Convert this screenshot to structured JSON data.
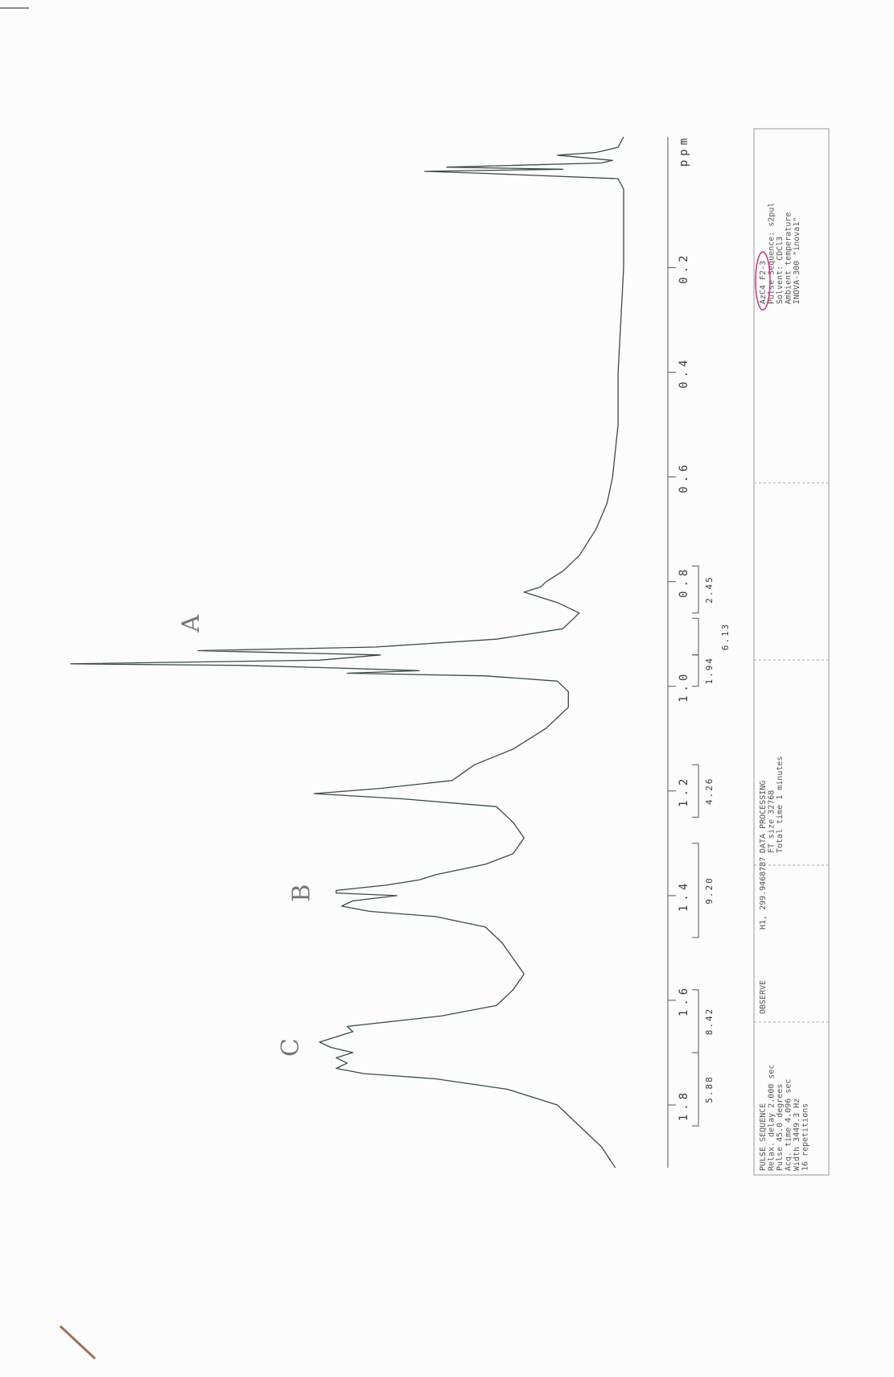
{
  "chart_data": {
    "type": "line",
    "xlabel": "ppm",
    "xlim": [
      1.92,
      -0.05
    ],
    "xticks": [
      1.8,
      1.6,
      1.4,
      1.2,
      {
        "value": 1,
        "label": "1.0"
      },
      0.8,
      0.6,
      0.4,
      0.2
    ],
    "ylim": [
      0,
      100
    ],
    "color": "#3d4a42",
    "x": [
      1.92,
      1.88,
      1.84,
      1.8,
      1.77,
      1.75,
      1.74,
      1.73,
      1.72,
      1.71,
      1.7,
      1.69,
      1.68,
      1.67,
      1.66,
      1.65,
      1.63,
      1.61,
      1.58,
      1.55,
      1.52,
      1.49,
      1.46,
      1.44,
      1.43,
      1.42,
      1.41,
      1.4,
      1.395,
      1.39,
      1.38,
      1.37,
      1.36,
      1.34,
      1.32,
      1.29,
      1.26,
      1.23,
      1.215,
      1.205,
      1.195,
      1.18,
      1.15,
      1.12,
      1.08,
      1.04,
      1.01,
      0.99,
      0.98,
      0.975,
      0.97,
      0.965,
      0.96,
      0.957,
      0.95,
      0.94,
      0.932,
      0.925,
      0.91,
      0.89,
      0.86,
      0.84,
      0.82,
      0.81,
      0.8,
      0.78,
      0.75,
      0.7,
      0.65,
      0.6,
      0.5,
      0.4,
      0.3,
      0.2,
      0.1,
      0.05,
      0.03,
      0.02,
      0.016,
      0.012,
      0.008,
      0.0,
      -0.005,
      -0.015,
      -0.02,
      -0.03,
      -0.05
    ],
    "values": [
      1.5,
      4,
      8,
      12,
      21,
      34,
      47,
      52,
      50,
      52,
      49,
      53,
      55,
      52,
      49,
      50,
      33,
      23,
      20,
      18,
      20,
      22,
      25,
      34,
      46,
      51,
      49,
      41,
      52,
      52,
      43,
      37,
      34,
      25,
      20,
      18,
      20,
      23,
      40,
      56,
      44,
      31,
      27,
      20,
      14,
      10,
      10,
      12,
      25,
      50,
      37,
      52,
      69,
      100,
      55,
      44,
      77,
      45,
      23,
      11,
      8,
      12,
      18,
      15,
      14,
      11,
      8,
      5,
      3,
      2,
      1,
      1,
      0.5,
      0,
      0,
      0,
      1,
      25,
      36,
      11,
      32,
      4,
      2,
      12,
      5,
      1,
      0
    ],
    "integrals": [
      {
        "value": 5.88,
        "from": 1.84,
        "to": 1.7
      },
      {
        "value": 8.42,
        "from": 1.7,
        "to": 1.58
      },
      {
        "value": 9.2,
        "label": "9.20",
        "from": 1.48,
        "to": 1.3
      },
      {
        "value": 4.26,
        "from": 1.25,
        "to": 1.15
      },
      {
        "value": 1.94,
        "from": 1.0,
        "to": 0.94
      },
      {
        "value": 6.13,
        "from": 0.94,
        "to": 0.87
      },
      {
        "value": 2.45,
        "from": 0.86,
        "to": 0.77
      }
    ],
    "annotations": [
      {
        "text": "A",
        "x": 0.88,
        "y": 78
      },
      {
        "text": "B",
        "x": 1.395,
        "y": 58
      },
      {
        "text": "C",
        "x": 1.69,
        "y": 60
      }
    ],
    "parameter_blocks": [
      {
        "lines": [
          "PULSE SEQUENCE",
          "Relax. delay 2.000 sec",
          "Pulse 45.0 degrees",
          "Acq. time 4.096 sec",
          "Width 3449.3 Hz",
          "16 repetitions"
        ]
      },
      {
        "lines": [
          "OBSERVE"
        ]
      },
      {
        "lines": [
          "H1, 299.9468787"
        ]
      },
      {
        "lines": [
          "DATA PROCESSING",
          "FT size 32768",
          "Total time 1 minutes"
        ]
      },
      {
        "lines": [
          "AzC4 F2-3",
          "Pulse Sequence: s2pul",
          "Solvent: CDCl3",
          "Ambient temperature",
          "INOVA-300 \"inova1\""
        ]
      }
    ]
  }
}
